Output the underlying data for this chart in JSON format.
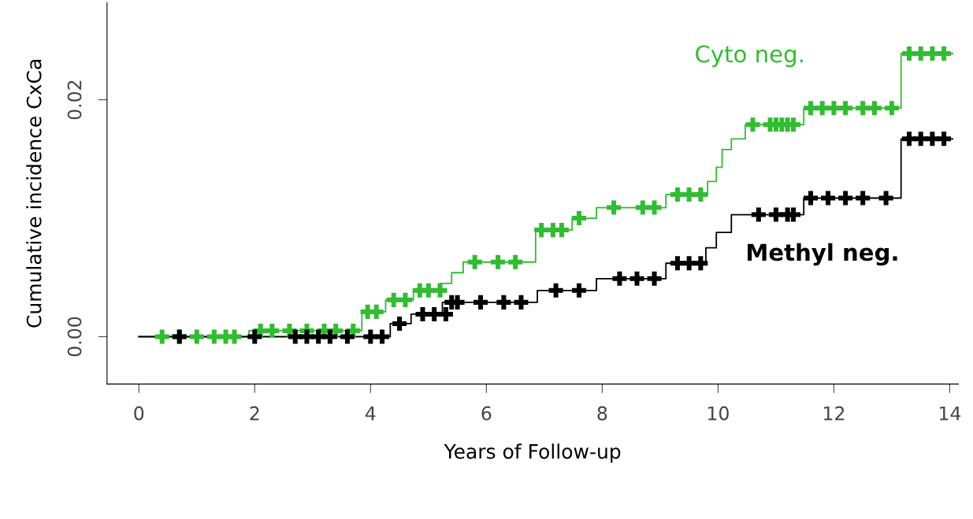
{
  "chart_data": {
    "type": "step",
    "xlabel": "Years of Follow-up",
    "ylabel": "Cumulative incidence CxCa",
    "xlim": [
      -0.55,
      14.15
    ],
    "ylim": [
      -0.004,
      0.0282
    ],
    "xticks": [
      0,
      2,
      4,
      6,
      8,
      10,
      12,
      14
    ],
    "yticks": [
      {
        "value": 0,
        "label": "0.00"
      },
      {
        "value": 0.02,
        "label": "0.02"
      }
    ],
    "grid": false,
    "legend": "right",
    "series": [
      {
        "name": "Cyto neg.",
        "color": "#33bb33",
        "x": [
          0,
          1.9,
          3.85,
          4.26,
          4.74,
          5.2,
          5.4,
          5.6,
          6.85,
          7.48,
          7.9,
          9.1,
          9.82,
          9.97,
          10.07,
          10.23,
          10.47,
          11.48,
          13.16,
          14.05
        ],
        "values": [
          0,
          0.0005,
          0.0021,
          0.0031,
          0.0039,
          0.0045,
          0.0054,
          0.0063,
          0.009,
          0.01,
          0.0109,
          0.012,
          0.0131,
          0.0143,
          0.0158,
          0.0167,
          0.0179,
          0.0193,
          0.0239,
          0.0239
        ]
      },
      {
        "name": "Methyl neg.",
        "color": "#000000",
        "x": [
          0,
          4.34,
          4.7,
          5.24,
          6.88,
          7.9,
          9.1,
          9.79,
          9.97,
          10.23,
          11.48,
          13.16,
          14.05
        ],
        "values": [
          0,
          0.0011,
          0.0019,
          0.0029,
          0.0039,
          0.0049,
          0.0062,
          0.0075,
          0.0088,
          0.0103,
          0.0117,
          0.0167,
          0.0167
        ]
      },
      {
        "type": "scatter",
        "marker": "cross",
        "color": "#33bb33",
        "x": [
          0.4,
          0.7,
          1.0,
          1.3,
          1.5,
          1.65,
          2.1,
          2.3,
          2.6,
          2.9,
          3.2,
          3.4,
          3.7,
          3.95,
          4.1,
          4.4,
          4.6,
          4.85,
          5.0,
          5.2,
          5.8,
          6.2,
          6.5,
          6.95,
          7.15,
          7.3,
          7.6,
          8.2,
          8.7,
          8.9,
          9.3,
          9.5,
          9.7,
          10.6,
          10.9,
          11.0,
          11.1,
          11.2,
          11.3,
          11.6,
          11.8,
          12.0,
          12.2,
          12.5,
          12.7,
          13.0,
          13.3,
          13.5,
          13.7,
          13.9
        ],
        "values": [
          0,
          0,
          0,
          0,
          0,
          0,
          0.0005,
          0.0005,
          0.0005,
          0.0005,
          0.0005,
          0.0005,
          0.0005,
          0.0021,
          0.0021,
          0.0031,
          0.0031,
          0.0039,
          0.0039,
          0.0039,
          0.0063,
          0.0063,
          0.0063,
          0.009,
          0.009,
          0.009,
          0.01,
          0.0109,
          0.0109,
          0.0109,
          0.012,
          0.012,
          0.012,
          0.0179,
          0.0179,
          0.0179,
          0.0179,
          0.0179,
          0.0179,
          0.0193,
          0.0193,
          0.0193,
          0.0193,
          0.0193,
          0.0193,
          0.0193,
          0.0239,
          0.0239,
          0.0239,
          0.0239
        ]
      },
      {
        "type": "scatter",
        "marker": "cross",
        "color": "#000000",
        "x": [
          0.7,
          2.0,
          2.7,
          2.9,
          3.1,
          3.3,
          3.6,
          4.0,
          4.2,
          4.5,
          4.9,
          5.1,
          5.3,
          5.4,
          5.5,
          5.9,
          6.3,
          6.6,
          7.2,
          7.6,
          8.3,
          8.6,
          8.9,
          9.3,
          9.5,
          9.7,
          10.7,
          11.0,
          11.2,
          11.3,
          11.6,
          11.9,
          12.2,
          12.5,
          12.9,
          13.3,
          13.5,
          13.7,
          13.9
        ],
        "values": [
          0,
          0,
          0,
          0,
          0,
          0,
          0,
          0,
          0,
          0.0011,
          0.0019,
          0.0019,
          0.0019,
          0.0029,
          0.0029,
          0.0029,
          0.0029,
          0.0029,
          0.0039,
          0.0039,
          0.0049,
          0.0049,
          0.0049,
          0.0062,
          0.0062,
          0.0062,
          0.0103,
          0.0103,
          0.0103,
          0.0103,
          0.0117,
          0.0117,
          0.0117,
          0.0117,
          0.0117,
          0.0167,
          0.0167,
          0.0167,
          0.0167
        ]
      }
    ]
  }
}
